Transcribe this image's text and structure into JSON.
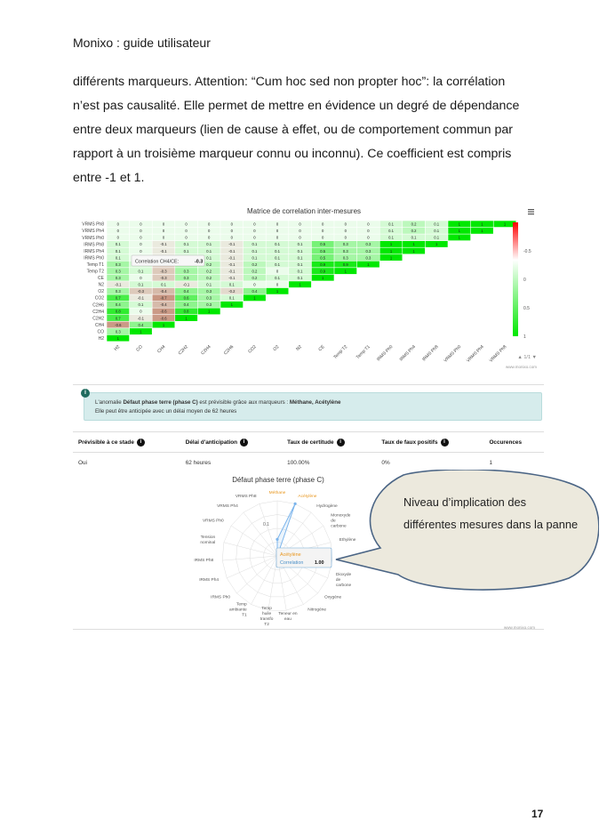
{
  "header": {
    "title": "Monixo : guide utilisateur"
  },
  "paragraph": "différents marqueurs. Attention: “Cum hoc sed non propter hoc”: la corrélation n’est pas causalité. Elle permet de mettre en évidence un degré de dépendance entre deux marqueurs (lien de cause à effet, ou de comportement commun par rapport à un troisième marqueur connu ou inconnu). Ce coefficient est compris entre -1 et 1.",
  "page_number": "17",
  "chart_data": [
    {
      "type": "heatmap",
      "title": "Matrice de correlation inter-mesures",
      "rows": [
        "VRMS Ph8",
        "VRMS Ph4",
        "VRMS Ph0",
        "IRMS Ph8",
        "IRMS Ph4",
        "IRMS Ph0",
        "Temp T1",
        "Temp T2",
        "CE",
        "N2",
        "O2",
        "CO2",
        "C2H6",
        "C2H4",
        "C2H2",
        "CH4",
        "CO",
        "H2"
      ],
      "columns": [
        "H2",
        "CO",
        "CH4",
        "C2H2",
        "C2H4",
        "C2H6",
        "CO2",
        "O2",
        "N2",
        "CE",
        "Temp T2",
        "Temp T1",
        "IRMS Ph0",
        "IRMS Ph4",
        "IRMS Ph8",
        "VRMS Ph0",
        "VRMS Ph4",
        "VRMS Ph8"
      ],
      "values": [
        [
          0,
          0,
          0,
          0,
          0,
          0,
          0,
          0,
          0,
          0,
          0,
          0,
          0.1,
          0.2,
          0.1,
          1,
          1,
          1
        ],
        [
          0,
          0,
          0,
          0,
          0,
          0,
          0,
          0,
          0,
          0,
          0,
          0,
          0.1,
          0.2,
          0.1,
          1,
          1,
          null
        ],
        [
          0,
          0,
          0,
          0,
          0,
          0,
          0,
          0,
          0,
          0,
          0,
          0,
          0.1,
          0.1,
          0.1,
          1,
          null,
          null
        ],
        [
          0.1,
          0,
          -0.1,
          0.1,
          0.1,
          -0.1,
          0.1,
          0.1,
          0.1,
          0.5,
          0.3,
          0.3,
          1,
          1,
          1,
          null,
          null,
          null
        ],
        [
          0.1,
          0,
          -0.1,
          0.1,
          0.1,
          -0.1,
          0.1,
          0.1,
          0.1,
          0.5,
          0.3,
          0.3,
          1,
          1,
          null,
          null,
          null,
          null
        ],
        [
          0.1,
          0,
          -0.1,
          0.1,
          0.1,
          -0.1,
          0.1,
          0.1,
          0.1,
          0.5,
          0.3,
          0.3,
          1,
          null,
          null,
          null,
          null,
          null
        ],
        [
          0.3,
          0.1,
          -0.3,
          0.3,
          0.2,
          -0.1,
          0.2,
          0.1,
          0.1,
          0.9,
          0.9,
          1,
          null,
          null,
          null,
          null,
          null,
          null
        ],
        [
          0.3,
          0.1,
          -0.3,
          0.3,
          0.2,
          -0.1,
          0.2,
          0,
          0.1,
          0.9,
          1,
          null,
          null,
          null,
          null,
          null,
          null,
          null
        ],
        [
          0.3,
          0,
          -0.3,
          0.3,
          0.2,
          -0.1,
          0.2,
          0.1,
          0.1,
          1,
          null,
          null,
          null,
          null,
          null,
          null,
          null,
          null
        ],
        [
          -0.1,
          0.1,
          0.1,
          -0.1,
          0.1,
          0.1,
          0,
          0,
          1,
          null,
          null,
          null,
          null,
          null,
          null,
          null,
          null,
          null
        ],
        [
          0.3,
          -0.3,
          -0.4,
          0.4,
          0.3,
          -0.2,
          0.4,
          1,
          null,
          null,
          null,
          null,
          null,
          null,
          null,
          null,
          null,
          null
        ],
        [
          0.7,
          -0.1,
          -0.7,
          0.6,
          0.3,
          0.1,
          1,
          null,
          null,
          null,
          null,
          null,
          null,
          null,
          null,
          null,
          null,
          null
        ],
        [
          0.4,
          0.1,
          -0.4,
          0.4,
          0.3,
          1,
          null,
          null,
          null,
          null,
          null,
          null,
          null,
          null,
          null,
          null,
          null,
          null
        ],
        [
          0.8,
          0,
          -0.6,
          0.8,
          1,
          null,
          null,
          null,
          null,
          null,
          null,
          null,
          null,
          null,
          null,
          null,
          null,
          null
        ],
        [
          0.7,
          -0.1,
          -0.6,
          1,
          null,
          null,
          null,
          null,
          null,
          null,
          null,
          null,
          null,
          null,
          null,
          null,
          null,
          null
        ],
        [
          -0.6,
          0.4,
          1,
          null,
          null,
          null,
          null,
          null,
          null,
          null,
          null,
          null,
          null,
          null,
          null,
          null,
          null,
          null
        ],
        [
          0.3,
          1,
          null,
          null,
          null,
          null,
          null,
          null,
          null,
          null,
          null,
          null,
          null,
          null,
          null,
          null,
          null,
          null
        ],
        [
          1,
          null,
          null,
          null,
          null,
          null,
          null,
          null,
          null,
          null,
          null,
          null,
          null,
          null,
          null,
          null,
          null,
          null
        ]
      ],
      "colorbar_ticks": [
        "-0.5",
        "0",
        "0.5",
        "1"
      ],
      "tooltip": {
        "label": "Correlation CH4/CE:",
        "value": "-0.3"
      },
      "pager": "1/1",
      "credit": "www.monixo.com",
      "menu_icon": "hamburger-icon"
    },
    {
      "type": "radar",
      "title": "Défaut phase terre (phase C)",
      "axes": [
        "Méthane",
        "Acétylène",
        "Hydrogène",
        "Monoxyde de carbone",
        "Ethylène",
        "Ethane",
        "Dioxyde de carbone",
        "Oxygène",
        "Nitrogène",
        "Teneur en eau",
        "Temp huile transfo T2",
        "Temp ambiante T1",
        "IRMS Ph0",
        "IRMS Ph4",
        "IRMS Ph8",
        "Tension nominal",
        "VRMS Ph0",
        "VRMS Ph4",
        "VRMS Ph8"
      ],
      "highlight_axes": [
        "Méthane",
        "Acétylène"
      ],
      "values": [
        0.3,
        1,
        0,
        0,
        0,
        0,
        0,
        0,
        0,
        0,
        0,
        0,
        0,
        0,
        0,
        0,
        0,
        0,
        0
      ],
      "radial_tick": "0.1",
      "tooltip": {
        "name": "Acétylène",
        "label": "Correlation",
        "value": "1.00"
      },
      "credit": "www.monixo.com"
    }
  ],
  "info": {
    "icon": "info-icon",
    "line1_prefix": "L'anomalie ",
    "line1_fault": "Défaut phase terre (phase C)",
    "line1_middle": " est prévisible grâce aux marqueurs : ",
    "line1_markers": "Méthane, Acétylène",
    "line2": "Elle peut être anticipée avec un délai moyen de 62 heures"
  },
  "table": {
    "headers": [
      "Prévisible à ce stade",
      "Délai d'anticipation",
      "Taux de certitude",
      "Taux de faux positifs",
      "Occurences"
    ],
    "help_icon": "help-icon",
    "rows": [
      [
        "Oui",
        "62 heures",
        "100.00%",
        "0%",
        "1"
      ]
    ]
  },
  "callout": {
    "text": "Niveau d’implication des différentes mesures dans la panne",
    "fill": "#ece9dd",
    "stroke": "#4b6585"
  },
  "colors": {
    "high": "#00e800",
    "mid": "#ffffff",
    "low": "#ff0000"
  }
}
